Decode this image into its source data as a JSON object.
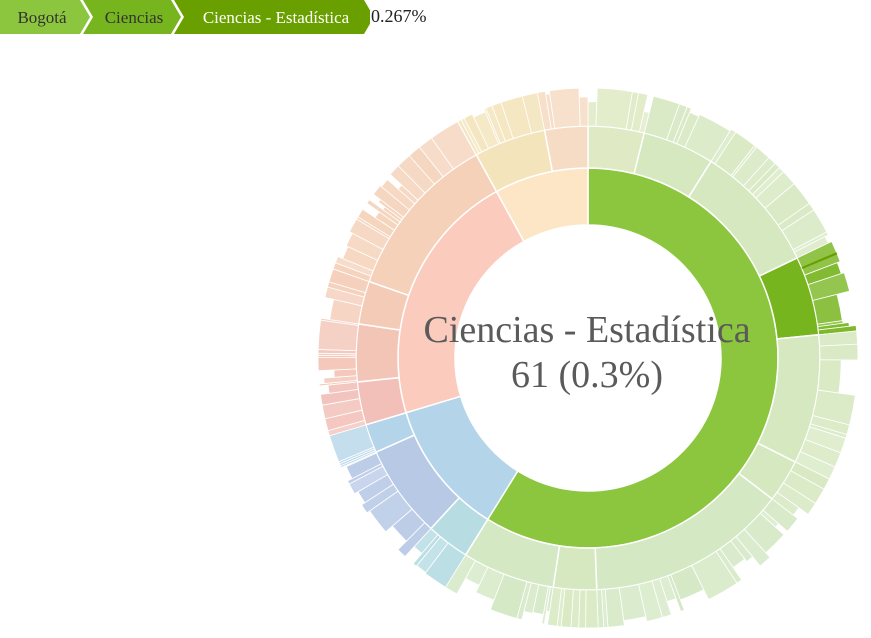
{
  "breadcrumb": {
    "items": [
      {
        "label": "Bogotá",
        "color": "#8cc63f"
      },
      {
        "label": "Ciencias",
        "color": "#77b51f"
      },
      {
        "label": "Ciencias - Estadística",
        "color": "#69a000"
      }
    ],
    "percentage": "0.267%"
  },
  "center": {
    "name": "Ciencias - Estadística",
    "value": "61 (0.3%)"
  },
  "chart_data": {
    "type": "sunburst",
    "selected_path": [
      "Bogotá",
      "Ciencias",
      "Ciencias - Estadística"
    ],
    "selected_value": 61,
    "selected_share_percent": 0.267,
    "rings": [
      {
        "level": 1,
        "segments": [
          {
            "share": 0.5885,
            "color": "#8cc63f"
          },
          {
            "share": 0.115,
            "color": "#b3d4e9"
          },
          {
            "share": 0.2165,
            "color": "#fbcbbd"
          },
          {
            "share": 0.08,
            "color": "#fde6c6"
          }
        ]
      },
      {
        "level": 2,
        "segments": [
          {
            "share": 0.039,
            "color": "#dfeac4"
          },
          {
            "share": 0.05,
            "color": "#d6e8c0"
          },
          {
            "share": 0.09,
            "color": "#d6e8c0"
          },
          {
            "share": 0.055,
            "color": "#77b51f"
          },
          {
            "share": 0.09,
            "color": "#d6e8c0"
          },
          {
            "share": 0.03,
            "color": "#d6e8c0"
          },
          {
            "share": 0.14,
            "color": "#d4e8c4"
          },
          {
            "share": 0.03,
            "color": "#d6e8c0"
          },
          {
            "share": 0.0645,
            "color": "#d4e8c4"
          },
          {
            "share": 0.03,
            "color": "#b7dde3"
          },
          {
            "share": 0.065,
            "color": "#b8c9e6"
          },
          {
            "share": 0.02,
            "color": "#b3d4e9"
          },
          {
            "share": 0.03,
            "color": "#f2c0b8"
          },
          {
            "share": 0.04,
            "color": "#f3c5b7"
          },
          {
            "share": 0.03,
            "color": "#f4cbb6"
          },
          {
            "share": 0.1165,
            "color": "#f4d1b8"
          },
          {
            "share": 0.05,
            "color": "#f3e4bb"
          },
          {
            "share": 0.03,
            "color": "#f6dcc4"
          }
        ]
      }
    ]
  }
}
